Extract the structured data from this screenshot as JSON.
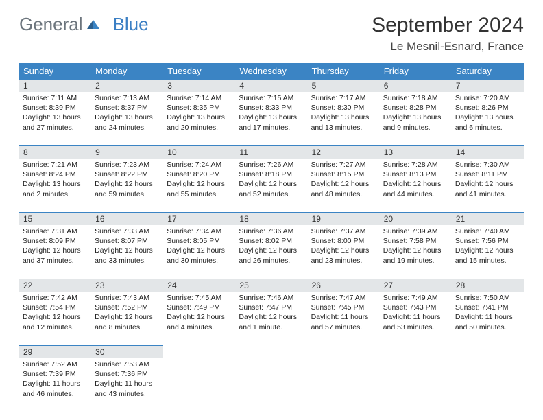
{
  "logo": {
    "general": "General",
    "blue": "Blue"
  },
  "title": "September 2024",
  "location": "Le Mesnil-Esnard, France",
  "colors": {
    "header_bg": "#3b84c4",
    "header_text": "#ffffff",
    "daynum_bg": "#e3e6e8",
    "border_top": "#3b84c4",
    "body_text": "#222222",
    "logo_gray": "#6c757d",
    "logo_blue": "#3b7fc4"
  },
  "weekdays": [
    "Sunday",
    "Monday",
    "Tuesday",
    "Wednesday",
    "Thursday",
    "Friday",
    "Saturday"
  ],
  "days": [
    {
      "n": "1",
      "sr": "Sunrise: 7:11 AM",
      "ss": "Sunset: 8:39 PM",
      "dl1": "Daylight: 13 hours",
      "dl2": "and 27 minutes."
    },
    {
      "n": "2",
      "sr": "Sunrise: 7:13 AM",
      "ss": "Sunset: 8:37 PM",
      "dl1": "Daylight: 13 hours",
      "dl2": "and 24 minutes."
    },
    {
      "n": "3",
      "sr": "Sunrise: 7:14 AM",
      "ss": "Sunset: 8:35 PM",
      "dl1": "Daylight: 13 hours",
      "dl2": "and 20 minutes."
    },
    {
      "n": "4",
      "sr": "Sunrise: 7:15 AM",
      "ss": "Sunset: 8:33 PM",
      "dl1": "Daylight: 13 hours",
      "dl2": "and 17 minutes."
    },
    {
      "n": "5",
      "sr": "Sunrise: 7:17 AM",
      "ss": "Sunset: 8:30 PM",
      "dl1": "Daylight: 13 hours",
      "dl2": "and 13 minutes."
    },
    {
      "n": "6",
      "sr": "Sunrise: 7:18 AM",
      "ss": "Sunset: 8:28 PM",
      "dl1": "Daylight: 13 hours",
      "dl2": "and 9 minutes."
    },
    {
      "n": "7",
      "sr": "Sunrise: 7:20 AM",
      "ss": "Sunset: 8:26 PM",
      "dl1": "Daylight: 13 hours",
      "dl2": "and 6 minutes."
    },
    {
      "n": "8",
      "sr": "Sunrise: 7:21 AM",
      "ss": "Sunset: 8:24 PM",
      "dl1": "Daylight: 13 hours",
      "dl2": "and 2 minutes."
    },
    {
      "n": "9",
      "sr": "Sunrise: 7:23 AM",
      "ss": "Sunset: 8:22 PM",
      "dl1": "Daylight: 12 hours",
      "dl2": "and 59 minutes."
    },
    {
      "n": "10",
      "sr": "Sunrise: 7:24 AM",
      "ss": "Sunset: 8:20 PM",
      "dl1": "Daylight: 12 hours",
      "dl2": "and 55 minutes."
    },
    {
      "n": "11",
      "sr": "Sunrise: 7:26 AM",
      "ss": "Sunset: 8:18 PM",
      "dl1": "Daylight: 12 hours",
      "dl2": "and 52 minutes."
    },
    {
      "n": "12",
      "sr": "Sunrise: 7:27 AM",
      "ss": "Sunset: 8:15 PM",
      "dl1": "Daylight: 12 hours",
      "dl2": "and 48 minutes."
    },
    {
      "n": "13",
      "sr": "Sunrise: 7:28 AM",
      "ss": "Sunset: 8:13 PM",
      "dl1": "Daylight: 12 hours",
      "dl2": "and 44 minutes."
    },
    {
      "n": "14",
      "sr": "Sunrise: 7:30 AM",
      "ss": "Sunset: 8:11 PM",
      "dl1": "Daylight: 12 hours",
      "dl2": "and 41 minutes."
    },
    {
      "n": "15",
      "sr": "Sunrise: 7:31 AM",
      "ss": "Sunset: 8:09 PM",
      "dl1": "Daylight: 12 hours",
      "dl2": "and 37 minutes."
    },
    {
      "n": "16",
      "sr": "Sunrise: 7:33 AM",
      "ss": "Sunset: 8:07 PM",
      "dl1": "Daylight: 12 hours",
      "dl2": "and 33 minutes."
    },
    {
      "n": "17",
      "sr": "Sunrise: 7:34 AM",
      "ss": "Sunset: 8:05 PM",
      "dl1": "Daylight: 12 hours",
      "dl2": "and 30 minutes."
    },
    {
      "n": "18",
      "sr": "Sunrise: 7:36 AM",
      "ss": "Sunset: 8:02 PM",
      "dl1": "Daylight: 12 hours",
      "dl2": "and 26 minutes."
    },
    {
      "n": "19",
      "sr": "Sunrise: 7:37 AM",
      "ss": "Sunset: 8:00 PM",
      "dl1": "Daylight: 12 hours",
      "dl2": "and 23 minutes."
    },
    {
      "n": "20",
      "sr": "Sunrise: 7:39 AM",
      "ss": "Sunset: 7:58 PM",
      "dl1": "Daylight: 12 hours",
      "dl2": "and 19 minutes."
    },
    {
      "n": "21",
      "sr": "Sunrise: 7:40 AM",
      "ss": "Sunset: 7:56 PM",
      "dl1": "Daylight: 12 hours",
      "dl2": "and 15 minutes."
    },
    {
      "n": "22",
      "sr": "Sunrise: 7:42 AM",
      "ss": "Sunset: 7:54 PM",
      "dl1": "Daylight: 12 hours",
      "dl2": "and 12 minutes."
    },
    {
      "n": "23",
      "sr": "Sunrise: 7:43 AM",
      "ss": "Sunset: 7:52 PM",
      "dl1": "Daylight: 12 hours",
      "dl2": "and 8 minutes."
    },
    {
      "n": "24",
      "sr": "Sunrise: 7:45 AM",
      "ss": "Sunset: 7:49 PM",
      "dl1": "Daylight: 12 hours",
      "dl2": "and 4 minutes."
    },
    {
      "n": "25",
      "sr": "Sunrise: 7:46 AM",
      "ss": "Sunset: 7:47 PM",
      "dl1": "Daylight: 12 hours",
      "dl2": "and 1 minute."
    },
    {
      "n": "26",
      "sr": "Sunrise: 7:47 AM",
      "ss": "Sunset: 7:45 PM",
      "dl1": "Daylight: 11 hours",
      "dl2": "and 57 minutes."
    },
    {
      "n": "27",
      "sr": "Sunrise: 7:49 AM",
      "ss": "Sunset: 7:43 PM",
      "dl1": "Daylight: 11 hours",
      "dl2": "and 53 minutes."
    },
    {
      "n": "28",
      "sr": "Sunrise: 7:50 AM",
      "ss": "Sunset: 7:41 PM",
      "dl1": "Daylight: 11 hours",
      "dl2": "and 50 minutes."
    },
    {
      "n": "29",
      "sr": "Sunrise: 7:52 AM",
      "ss": "Sunset: 7:39 PM",
      "dl1": "Daylight: 11 hours",
      "dl2": "and 46 minutes."
    },
    {
      "n": "30",
      "sr": "Sunrise: 7:53 AM",
      "ss": "Sunset: 7:36 PM",
      "dl1": "Daylight: 11 hours",
      "dl2": "and 43 minutes."
    }
  ]
}
